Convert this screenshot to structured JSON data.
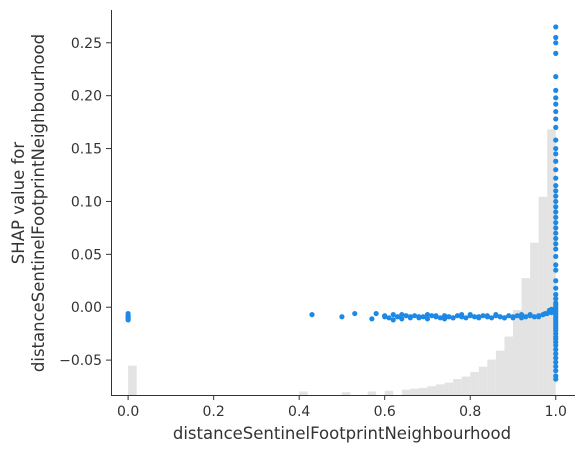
{
  "chart_data": {
    "type": "scatter",
    "title": "",
    "xlabel": "distanceSentinelFootprintNeighbourhood",
    "ylabel_lines": [
      "SHAP value for",
      "distanceSentinelFootprintNeighbourhood"
    ],
    "xlim": [
      -0.04,
      1.045
    ],
    "ylim": [
      -0.083,
      0.281
    ],
    "x_ticks": [
      0.0,
      0.2,
      0.4,
      0.6,
      0.8,
      1.0
    ],
    "x_tick_labels": [
      "0.0",
      "0.2",
      "0.4",
      "0.6",
      "0.8",
      "1.0"
    ],
    "y_ticks": [
      -0.05,
      0.0,
      0.05,
      0.1,
      0.15,
      0.2,
      0.25
    ],
    "y_tick_labels": [
      "−0.05",
      "0.00",
      "0.05",
      "0.10",
      "0.15",
      "0.20",
      "0.25"
    ],
    "grid": false,
    "legend": "none",
    "colors": {
      "points": "#1e88e5",
      "histogram": "#e3e3e3",
      "axis": "#333333"
    },
    "histogram": {
      "bin_width": 0.02,
      "bin_starts": [
        0.0,
        0.4,
        0.5,
        0.56,
        0.6,
        0.64,
        0.66,
        0.68,
        0.7,
        0.72,
        0.74,
        0.76,
        0.78,
        0.8,
        0.82,
        0.84,
        0.86,
        0.88,
        0.9,
        0.92,
        0.94,
        0.96,
        0.98
      ],
      "relative_heights": [
        0.083,
        0.01,
        0.008,
        0.01,
        0.012,
        0.015,
        0.018,
        0.02,
        0.025,
        0.03,
        0.035,
        0.045,
        0.052,
        0.065,
        0.08,
        0.1,
        0.125,
        0.165,
        0.24,
        0.33,
        0.43,
        0.56,
        0.75
      ]
    },
    "series": [
      {
        "x": [
          0.0,
          0.0,
          0.0,
          0.0,
          0.0,
          0.0,
          0.43,
          0.5,
          0.53,
          0.57,
          0.58,
          0.6,
          0.61,
          0.62,
          0.63,
          0.64,
          0.65,
          0.66,
          0.67,
          0.68,
          0.69,
          0.7,
          0.71,
          0.72,
          0.73,
          0.74,
          0.75,
          0.76,
          0.77,
          0.78,
          0.79,
          0.8,
          0.81,
          0.82,
          0.83,
          0.84,
          0.85,
          0.86,
          0.87,
          0.88,
          0.89,
          0.9,
          0.91,
          0.92,
          0.93,
          0.94,
          0.95,
          0.96,
          0.97,
          0.98,
          0.99,
          0.995,
          0.6,
          0.64,
          0.68,
          0.72,
          0.76,
          0.8,
          0.84,
          0.88,
          0.92,
          0.96,
          0.985,
          0.62,
          0.66,
          0.7,
          0.74,
          0.78,
          0.82,
          0.86,
          0.9,
          0.94,
          0.975,
          0.99,
          1.0,
          1.0,
          1.0,
          1.0,
          1.0,
          1.0,
          1.0,
          1.0,
          1.0,
          1.0,
          1.0,
          1.0,
          1.0,
          1.0,
          1.0,
          1.0,
          1.0,
          1.0,
          1.0,
          1.0,
          1.0,
          1.0,
          1.0,
          1.0,
          1.0,
          1.0,
          1.0,
          1.0,
          1.0,
          1.0,
          1.0,
          1.0,
          1.0,
          1.0,
          1.0,
          1.0,
          1.0,
          1.0,
          1.0,
          1.0,
          1.0,
          1.0,
          1.0,
          1.0,
          1.0,
          1.0,
          1.0,
          1.0,
          1.0,
          1.0,
          1.0,
          1.0,
          1.0,
          1.0,
          1.0,
          1.0,
          1.0,
          1.0,
          1.0,
          1.0,
          1.0,
          1.0,
          1.0,
          1.0
        ],
        "y": [
          -0.006,
          -0.008,
          -0.009,
          -0.01,
          -0.011,
          -0.012,
          -0.007,
          -0.009,
          -0.006,
          -0.011,
          -0.006,
          -0.009,
          -0.01,
          -0.007,
          -0.009,
          -0.011,
          -0.008,
          -0.01,
          -0.008,
          -0.01,
          -0.009,
          -0.011,
          -0.008,
          -0.009,
          -0.01,
          -0.008,
          -0.009,
          -0.01,
          -0.008,
          -0.009,
          -0.01,
          -0.008,
          -0.009,
          -0.01,
          -0.008,
          -0.009,
          -0.01,
          -0.008,
          -0.009,
          -0.01,
          -0.008,
          -0.009,
          -0.008,
          -0.01,
          -0.009,
          -0.008,
          -0.009,
          -0.008,
          -0.007,
          -0.006,
          -0.005,
          -0.004,
          -0.008,
          -0.007,
          -0.009,
          -0.008,
          -0.01,
          -0.007,
          -0.008,
          -0.01,
          -0.007,
          -0.009,
          -0.003,
          -0.012,
          -0.009,
          -0.007,
          -0.011,
          -0.007,
          -0.009,
          -0.007,
          -0.01,
          -0.007,
          -0.006,
          -0.002,
          0.265,
          0.255,
          0.25,
          0.24,
          0.218,
          0.205,
          0.198,
          0.192,
          0.185,
          0.178,
          0.17,
          0.158,
          0.15,
          0.145,
          0.138,
          0.13,
          0.122,
          0.115,
          0.11,
          0.1,
          0.09,
          0.085,
          0.08,
          0.075,
          0.07,
          0.065,
          0.06,
          0.055,
          0.048,
          0.04,
          0.035,
          0.025,
          0.018,
          0.012,
          0.008,
          0.004,
          0.002,
          0.0,
          -0.002,
          -0.004,
          -0.006,
          -0.008,
          -0.01,
          -0.012,
          -0.014,
          -0.016,
          -0.018,
          -0.02,
          -0.022,
          -0.025,
          -0.028,
          -0.03,
          -0.033,
          -0.036,
          -0.04,
          -0.044,
          -0.048,
          -0.052,
          -0.056,
          -0.06,
          -0.065,
          -0.068,
          0.095,
          0.105
        ]
      }
    ]
  }
}
